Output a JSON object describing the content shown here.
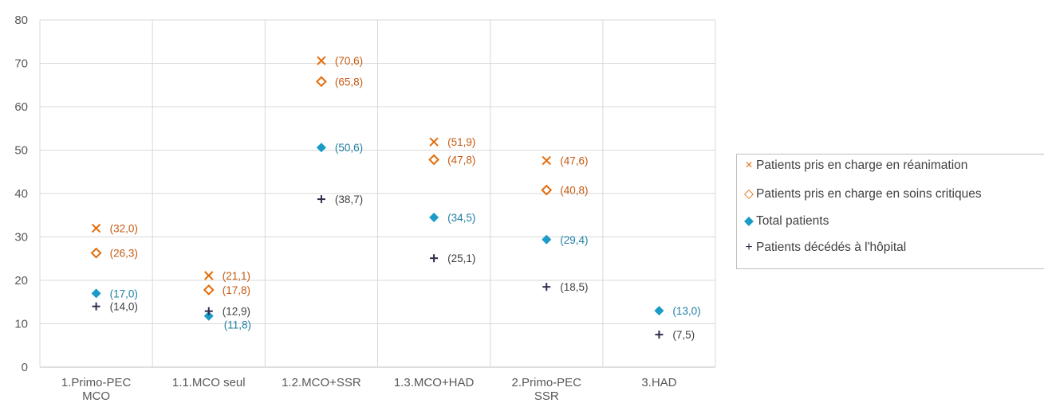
{
  "chart_data": {
    "type": "scatter",
    "categories": [
      "1.Primo-PEC MCO",
      "1.1.MCO seul",
      "1.2.MCO+SSR",
      "1.3.MCO+HAD",
      "2.Primo-PEC SSR",
      "3.HAD"
    ],
    "category_lines": [
      [
        "1.Primo-PEC",
        "MCO"
      ],
      [
        "1.1.MCO seul"
      ],
      [
        "1.2.MCO+SSR"
      ],
      [
        "1.3.MCO+HAD"
      ],
      [
        "2.Primo-PEC",
        "SSR"
      ],
      [
        "3.HAD"
      ]
    ],
    "ylim": [
      0,
      80
    ],
    "yticks": [
      "0",
      "10",
      "20",
      "30",
      "40",
      "50",
      "60",
      "70",
      "80"
    ],
    "grid": true,
    "legend_position": "right",
    "series": [
      {
        "name": "Patients pris en charge en réanimation",
        "symbol": "×",
        "marker": "x",
        "color": "#e46c0a",
        "label_color": "#c55a11",
        "values": [
          32.0,
          21.1,
          70.6,
          51.9,
          47.6,
          null
        ],
        "labels": [
          "(32,0)",
          "(21,1)",
          "(70,6)",
          "(51,9)",
          "(47,6)",
          ""
        ]
      },
      {
        "name": "Patients pris en charge en soins critiques",
        "symbol": "◇",
        "marker": "diamond-open",
        "color": "#e46c0a",
        "label_color": "#c55a11",
        "values": [
          26.3,
          17.8,
          65.8,
          47.8,
          40.8,
          null
        ],
        "labels": [
          "(26,3)",
          "(17,8)",
          "(65,8)",
          "(47,8)",
          "(40,8)",
          ""
        ]
      },
      {
        "name": "Total patients",
        "symbol": "◆",
        "marker": "diamond",
        "color": "#1b9bc7",
        "label_color": "#1f7fa3",
        "values": [
          17.0,
          11.8,
          50.6,
          34.5,
          29.4,
          13.0
        ],
        "labels": [
          "(17,0)",
          "(11,8)",
          "(50,6)",
          "(34,5)",
          "(29,4)",
          "(13,0)"
        ]
      },
      {
        "name": "Patients décédés à l'hôpital",
        "symbol": "+",
        "marker": "plus",
        "color": "#2e2e4e",
        "label_color": "#404040",
        "values": [
          14.0,
          12.9,
          38.7,
          25.1,
          18.5,
          7.5
        ],
        "labels": [
          "(14,0)",
          "(12,9)",
          "(38,7)",
          "(25,1)",
          "(18,5)",
          "(7,5)"
        ]
      }
    ]
  }
}
